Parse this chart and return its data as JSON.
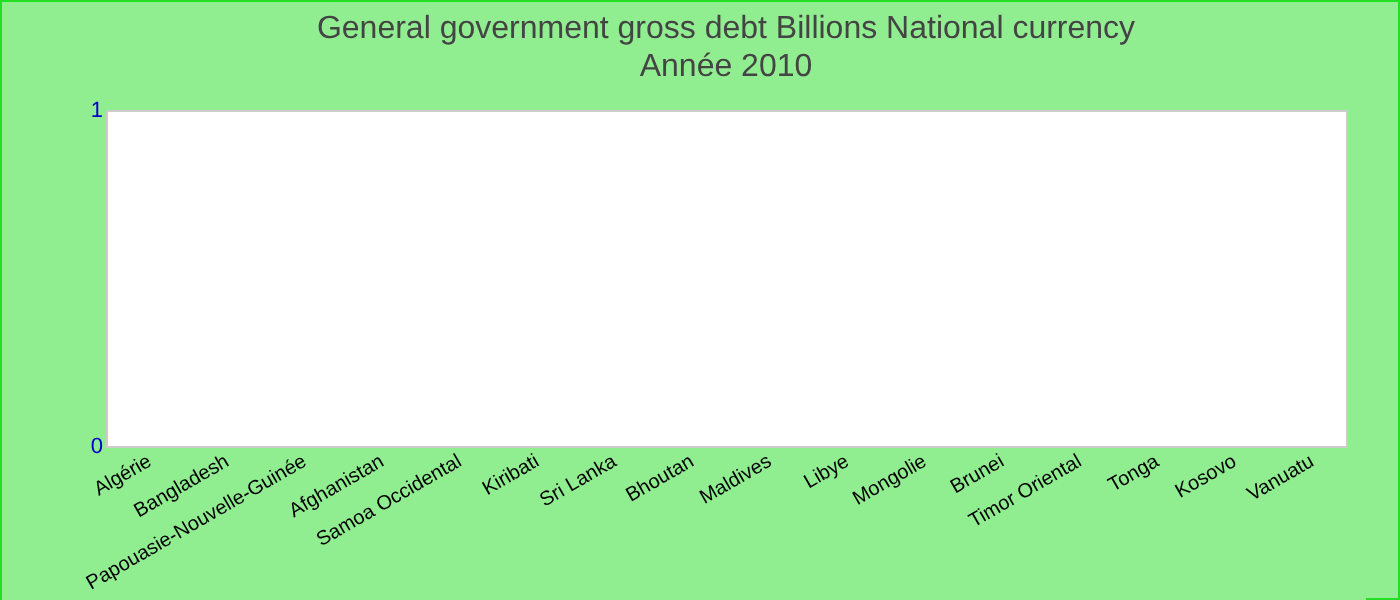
{
  "chart_data": {
    "type": "bar",
    "title": "General government gross debt Billions National currency",
    "subtitle": "Année 2010",
    "categories": [
      "Algérie",
      "Bangladesh",
      "Papouasie-Nouvelle-Guinée",
      "Afghanistan",
      "Samoa Occidental",
      "Kiribati",
      "Sri Lanka",
      "Bhoutan",
      "Maldives",
      "Libye",
      "Mongolie",
      "Brunei",
      "Timor Oriental",
      "Tonga",
      "Kosovo",
      "Vanuatu"
    ],
    "values": [
      0,
      0,
      0,
      0,
      0,
      0,
      0,
      0,
      0,
      0,
      0,
      0,
      0,
      0,
      0,
      0
    ],
    "ylim": [
      0,
      1
    ],
    "yticks": [
      0,
      1
    ],
    "grid": false
  }
}
